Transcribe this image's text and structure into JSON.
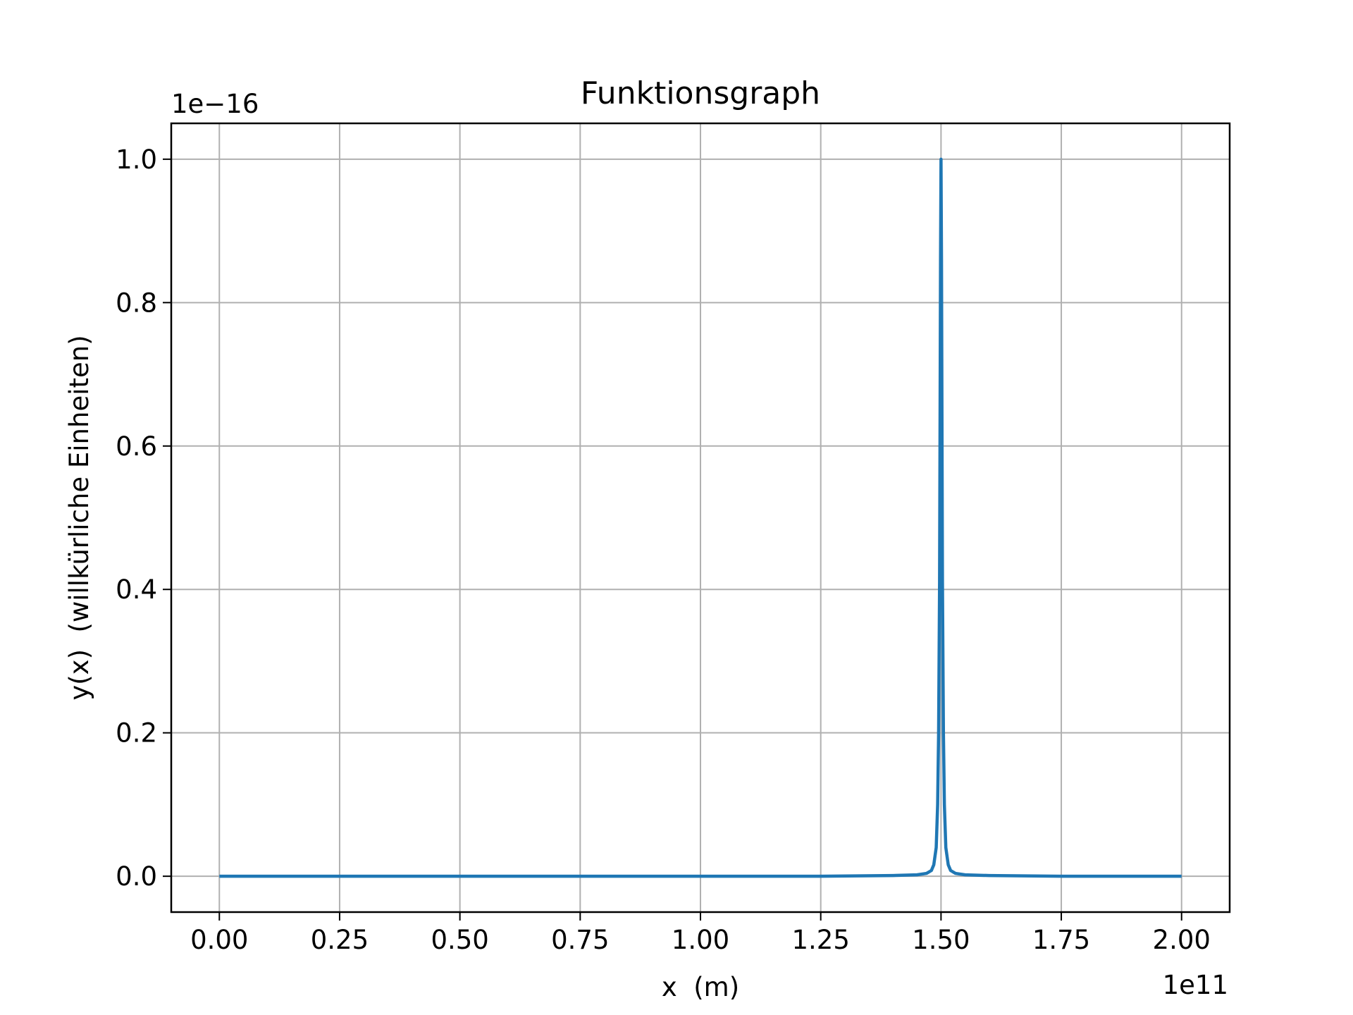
{
  "chart_data": {
    "type": "line",
    "title": "Funktionsgraph",
    "xlabel": "x  (m)",
    "ylabel": "y(x)  (willkürliche Einheiten)",
    "x_offset_label": "1e11",
    "y_offset_label": "1e−16",
    "x_scale_factor": 100000000000.0,
    "y_scale_factor": 1e-16,
    "xlim": [
      -0.1,
      2.1
    ],
    "ylim": [
      -0.05,
      1.05
    ],
    "x_ticks": [
      0.0,
      0.25,
      0.5,
      0.75,
      1.0,
      1.25,
      1.5,
      1.75,
      2.0
    ],
    "x_tick_labels": [
      "0.00",
      "0.25",
      "0.50",
      "0.75",
      "1.00",
      "1.25",
      "1.50",
      "1.75",
      "2.00"
    ],
    "y_ticks": [
      0.0,
      0.2,
      0.4,
      0.6,
      0.8,
      1.0
    ],
    "y_tick_labels": [
      "0.0",
      "0.2",
      "0.4",
      "0.6",
      "0.8",
      "1.0"
    ],
    "grid": true,
    "series": [
      {
        "color": "#1f77b4",
        "x": [
          0.0,
          0.25,
          0.5,
          0.75,
          1.0,
          1.25,
          1.4,
          1.45,
          1.47,
          1.48,
          1.485,
          1.49,
          1.493,
          1.495,
          1.497,
          1.499,
          1.5,
          1.501,
          1.503,
          1.505,
          1.507,
          1.51,
          1.515,
          1.52,
          1.53,
          1.55,
          1.6,
          1.75,
          2.0
        ],
        "y": [
          0.0,
          0.0,
          0.0,
          0.0,
          0.0,
          0.0,
          0.001,
          0.002,
          0.004,
          0.008,
          0.016,
          0.04,
          0.1,
          0.2,
          0.41,
          0.86,
          1.0,
          0.86,
          0.41,
          0.2,
          0.1,
          0.04,
          0.016,
          0.008,
          0.004,
          0.002,
          0.001,
          0.0,
          0.0
        ]
      }
    ]
  }
}
